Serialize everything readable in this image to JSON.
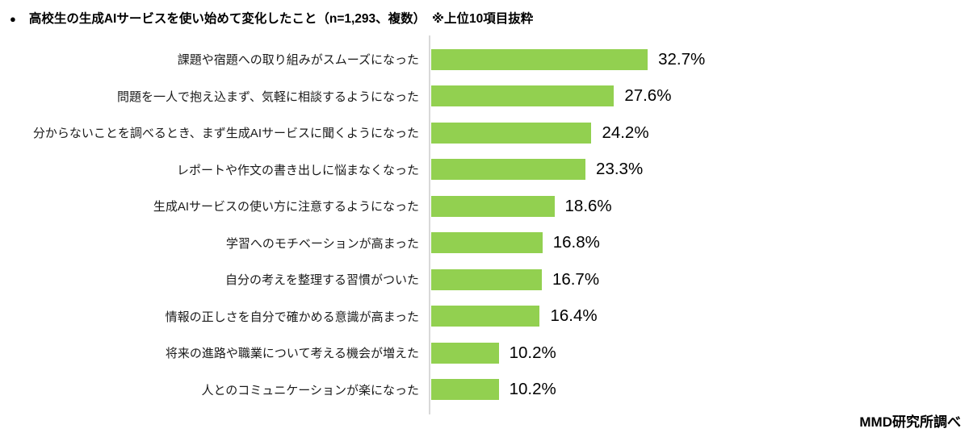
{
  "page": {
    "title_bullet": "●",
    "title": "高校生の生成AIサービスを使い始めて変化したこと（n=1,293、複数）　※上位10項目抜粋",
    "source": "MMD研究所調べ"
  },
  "chart_data": {
    "type": "bar",
    "orientation": "horizontal",
    "title": "高校生の生成AIサービスを使い始めて変化したこと（n=1,293、複数）※上位10項目抜粋",
    "sample_note": "n=1,293、複数",
    "selection_note": "※上位10項目抜粋",
    "categories": [
      "課題や宿題への取り組みがスムーズになった",
      "問題を一人で抱え込まず、気軽に相談するようになった",
      "分からないことを調べるとき、まず生成AIサービスに聞くようになった",
      "レポートや作文の書き出しに悩まなくなった",
      "生成AIサービスの使い方に注意するようになった",
      "学習へのモチベーションが高まった",
      "自分の考えを整理する習慣がついた",
      "情報の正しさを自分で確かめる意識が高まった",
      "将来の進路や職業について考える機会が増えた",
      "人とのコミュニケーションが楽になった"
    ],
    "values": [
      32.7,
      27.6,
      24.2,
      23.3,
      18.6,
      16.8,
      16.7,
      16.4,
      10.2,
      10.2
    ],
    "value_labels": [
      "32.7%",
      "27.6%",
      "24.2%",
      "23.3%",
      "18.6%",
      "16.8%",
      "16.7%",
      "16.4%",
      "10.2%",
      "10.2%"
    ],
    "unit": "%",
    "xlabel": "",
    "ylabel": "",
    "xlim": [
      0,
      40
    ],
    "grid": false,
    "legend": false,
    "bar_color": "#92d050",
    "axis_line_color": "#d9d9d9",
    "value_label_position": "outside-end",
    "source": "MMD研究所調べ"
  }
}
